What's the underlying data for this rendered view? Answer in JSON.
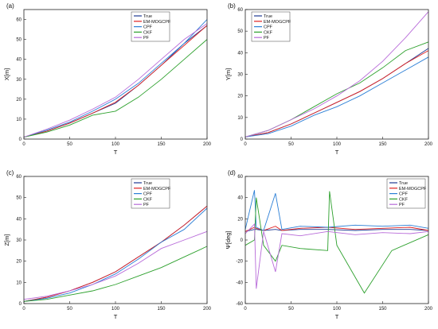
{
  "chart_data": [
    {
      "panel": "(a)",
      "type": "line",
      "xlabel": "T",
      "ylabel": "X[m]",
      "xlim": [
        0,
        200
      ],
      "ylim": [
        0,
        65
      ],
      "xticks": [
        0,
        50,
        100,
        150,
        200
      ],
      "yticks": [
        0,
        10,
        20,
        30,
        40,
        50,
        60
      ],
      "legend_position": "top-center",
      "series": [
        {
          "name": "True",
          "color": "#1f3a93",
          "x": [
            0,
            25,
            50,
            75,
            100,
            125,
            150,
            175,
            200
          ],
          "values": [
            1,
            4,
            8,
            13,
            18,
            27,
            37,
            48,
            57
          ]
        },
        {
          "name": "EM-MOGCPF",
          "color": "#e02020",
          "x": [
            0,
            25,
            50,
            75,
            100,
            125,
            150,
            175,
            200
          ],
          "values": [
            1,
            4,
            8,
            13,
            18.5,
            27,
            37,
            47,
            57
          ]
        },
        {
          "name": "CPF",
          "color": "#2b7fd6",
          "x": [
            0,
            25,
            50,
            75,
            100,
            125,
            150,
            175,
            200
          ],
          "values": [
            1,
            4.5,
            8.5,
            14,
            20,
            28,
            38,
            48,
            60
          ]
        },
        {
          "name": "CKF",
          "color": "#2ca02c",
          "x": [
            0,
            25,
            50,
            75,
            100,
            125,
            150,
            175,
            200
          ],
          "values": [
            1,
            3.5,
            7,
            12,
            14,
            21,
            30,
            40,
            50
          ]
        },
        {
          "name": "PF",
          "color": "#b86bd9",
          "x": [
            0,
            25,
            50,
            75,
            100,
            125,
            150,
            175,
            200
          ],
          "values": [
            1,
            5,
            9.5,
            15,
            21,
            30,
            40,
            50,
            58
          ]
        }
      ]
    },
    {
      "panel": "(b)",
      "type": "line",
      "xlabel": "T",
      "ylabel": "Y[m]",
      "xlim": [
        0,
        200
      ],
      "ylim": [
        0,
        60
      ],
      "xticks": [
        0,
        50,
        100,
        150,
        200
      ],
      "yticks": [
        0,
        10,
        20,
        30,
        40,
        50,
        60
      ],
      "legend_position": "top-left",
      "series": [
        {
          "name": "True",
          "color": "#1f3a93",
          "x": [
            0,
            25,
            50,
            75,
            100,
            125,
            150,
            175,
            200
          ],
          "values": [
            1,
            3,
            7,
            12,
            17,
            22,
            28,
            35,
            42
          ]
        },
        {
          "name": "EM-MOGCPF",
          "color": "#e02020",
          "x": [
            0,
            25,
            50,
            75,
            100,
            125,
            150,
            175,
            200
          ],
          "values": [
            1,
            3,
            7,
            12,
            17,
            22,
            28,
            35,
            41
          ]
        },
        {
          "name": "CPF",
          "color": "#2b7fd6",
          "x": [
            0,
            25,
            50,
            75,
            100,
            125,
            150,
            175,
            200
          ],
          "values": [
            1,
            2.5,
            6,
            11,
            15,
            20,
            26,
            32,
            38
          ]
        },
        {
          "name": "CKF",
          "color": "#2ca02c",
          "x": [
            0,
            25,
            50,
            75,
            100,
            125,
            150,
            175,
            200
          ],
          "values": [
            1,
            4,
            9,
            15,
            21,
            26,
            33,
            41,
            45
          ]
        },
        {
          "name": "PF",
          "color": "#b86bd9",
          "x": [
            0,
            25,
            50,
            75,
            100,
            125,
            150,
            175,
            200
          ],
          "values": [
            1,
            4,
            9,
            14,
            20,
            27,
            36,
            47,
            59
          ]
        }
      ]
    },
    {
      "panel": "(c)",
      "type": "line",
      "xlabel": "T",
      "ylabel": "Z[m]",
      "xlim": [
        0,
        200
      ],
      "ylim": [
        0,
        60
      ],
      "xticks": [
        0,
        50,
        100,
        150,
        200
      ],
      "yticks": [
        0,
        10,
        20,
        30,
        40,
        50,
        60
      ],
      "legend_position": "top-center",
      "series": [
        {
          "name": "True",
          "color": "#1f3a93",
          "x": [
            0,
            25,
            50,
            75,
            100,
            125,
            150,
            175,
            200
          ],
          "values": [
            1,
            3,
            6,
            10,
            15,
            22,
            29,
            37,
            46
          ]
        },
        {
          "name": "EM-MOGCPF",
          "color": "#e02020",
          "x": [
            0,
            25,
            50,
            75,
            100,
            125,
            150,
            175,
            200
          ],
          "values": [
            1,
            3,
            6,
            10,
            15,
            22,
            29,
            37,
            46
          ]
        },
        {
          "name": "CPF",
          "color": "#2b7fd6",
          "x": [
            0,
            25,
            50,
            75,
            100,
            125,
            150,
            175,
            200
          ],
          "values": [
            1,
            2.5,
            5,
            9,
            14,
            21,
            29,
            35,
            45
          ]
        },
        {
          "name": "CKF",
          "color": "#2ca02c",
          "x": [
            0,
            25,
            50,
            75,
            100,
            125,
            150,
            175,
            200
          ],
          "values": [
            1,
            2,
            4,
            6,
            9,
            13,
            17,
            22,
            27
          ]
        },
        {
          "name": "PF",
          "color": "#b86bd9",
          "x": [
            0,
            25,
            50,
            75,
            100,
            125,
            150,
            175,
            200
          ],
          "values": [
            2,
            3.5,
            6,
            9,
            13,
            19,
            26,
            30,
            34
          ]
        }
      ]
    },
    {
      "panel": "(d)",
      "type": "line",
      "xlabel": "T",
      "ylabel": "Ψ[deg]",
      "xlim": [
        0,
        200
      ],
      "ylim": [
        -60,
        60
      ],
      "xticks": [
        0,
        50,
        100,
        150,
        200
      ],
      "yticks": [
        -60,
        -40,
        -20,
        0,
        20,
        40,
        60
      ],
      "legend_position": "top-right",
      "series": [
        {
          "name": "True",
          "color": "#1f3a93",
          "x": [
            0,
            10,
            12,
            20,
            33,
            40,
            60,
            90,
            120,
            150,
            180,
            200
          ],
          "values": [
            8,
            10,
            10,
            9,
            10,
            9,
            10,
            10,
            9,
            10,
            10,
            9
          ]
        },
        {
          "name": "EM-MOGCPF",
          "color": "#e02020",
          "x": [
            0,
            10,
            12,
            20,
            33,
            40,
            60,
            90,
            120,
            150,
            180,
            200
          ],
          "values": [
            8,
            12,
            11,
            9,
            13,
            9,
            11,
            12,
            10,
            11,
            12,
            9
          ]
        },
        {
          "name": "CPF",
          "color": "#2b7fd6",
          "x": [
            0,
            10,
            12,
            20,
            33,
            40,
            60,
            90,
            120,
            150,
            180,
            200
          ],
          "values": [
            10,
            47,
            12,
            9,
            44,
            10,
            13,
            12,
            14,
            13,
            14,
            11
          ]
        },
        {
          "name": "CKF",
          "color": "#2ca02c",
          "x": [
            0,
            10,
            12,
            20,
            33,
            40,
            60,
            90,
            92,
            100,
            130,
            160,
            200
          ],
          "values": [
            -5,
            0,
            40,
            -5,
            -20,
            -5,
            -8,
            -10,
            46,
            -5,
            -50,
            -10,
            5
          ]
        },
        {
          "name": "PF",
          "color": "#b86bd9",
          "x": [
            0,
            10,
            12,
            20,
            33,
            40,
            60,
            90,
            120,
            150,
            180,
            200
          ],
          "values": [
            6,
            15,
            -46,
            8,
            -30,
            6,
            4,
            8,
            5,
            7,
            6,
            8
          ]
        }
      ]
    }
  ]
}
